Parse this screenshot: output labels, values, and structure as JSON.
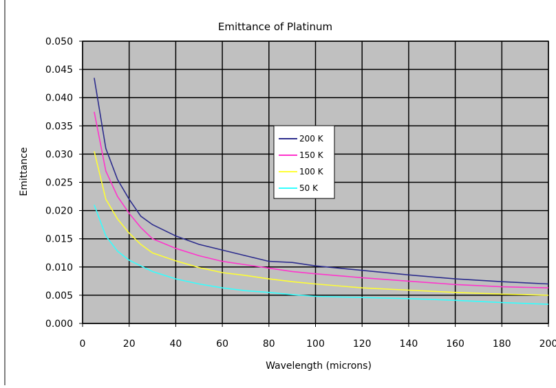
{
  "chart_data": {
    "type": "line",
    "title": "Emittance of Platinum",
    "xlabel": "Wavelength (microns)",
    "ylabel": "Emittance",
    "xlim": [
      0,
      200
    ],
    "ylim": [
      0,
      0.05
    ],
    "x_ticks": [
      0,
      20,
      40,
      60,
      80,
      100,
      120,
      140,
      160,
      180,
      200
    ],
    "y_ticks": [
      0,
      0.005,
      0.01,
      0.015,
      0.02,
      0.025,
      0.03,
      0.035,
      0.04,
      0.045,
      0.05
    ],
    "x_tick_labels": [
      "0",
      "20",
      "40",
      "60",
      "80",
      "100",
      "120",
      "140",
      "160",
      "180",
      "200"
    ],
    "y_tick_labels": [
      "0.000",
      "0.005",
      "0.010",
      "0.015",
      "0.020",
      "0.025",
      "0.030",
      "0.035",
      "0.040",
      "0.045",
      "0.050"
    ],
    "grid": true,
    "legend_position": "center",
    "plot_background": "#c0c0c0",
    "x": [
      5,
      10,
      15,
      20,
      25,
      30,
      40,
      50,
      60,
      70,
      80,
      90,
      100,
      120,
      140,
      160,
      180,
      200
    ],
    "series": [
      {
        "name": "200 K",
        "color": "#2b2b8c",
        "values": [
          0.0435,
          0.031,
          0.0255,
          0.022,
          0.019,
          0.0175,
          0.0155,
          0.014,
          0.013,
          0.012,
          0.011,
          0.0108,
          0.0102,
          0.0094,
          0.0086,
          0.0079,
          0.0074,
          0.007
        ]
      },
      {
        "name": "150 K",
        "color": "#ff33cc",
        "values": [
          0.0375,
          0.027,
          0.0225,
          0.0195,
          0.017,
          0.015,
          0.0133,
          0.012,
          0.011,
          0.0104,
          0.0098,
          0.0092,
          0.0088,
          0.0081,
          0.0075,
          0.0069,
          0.0065,
          0.0063
        ]
      },
      {
        "name": "100 K",
        "color": "#ffff33",
        "values": [
          0.0305,
          0.022,
          0.0185,
          0.016,
          0.014,
          0.0125,
          0.0111,
          0.0099,
          0.009,
          0.0085,
          0.0079,
          0.0074,
          0.007,
          0.0063,
          0.0059,
          0.0055,
          0.0052,
          0.005
        ]
      },
      {
        "name": "50 K",
        "color": "#33ffff",
        "values": [
          0.021,
          0.0155,
          0.0128,
          0.0112,
          0.0102,
          0.0092,
          0.0079,
          0.007,
          0.0063,
          0.0058,
          0.0055,
          0.0051,
          0.0048,
          0.0046,
          0.0044,
          0.0041,
          0.0037,
          0.0034
        ]
      }
    ]
  }
}
